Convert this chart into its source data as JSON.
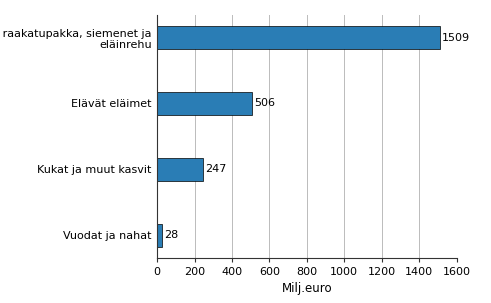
{
  "categories": [
    "Vuodat ja nahat",
    "Kukat ja muut kasvit",
    "Elävät eläimet",
    "Vilja, raakatupakka, siemenet ja\neläinrehu"
  ],
  "values": [
    28,
    247,
    506,
    1509
  ],
  "bar_color": "#2a7db5",
  "bar_edgecolor": "#000000",
  "xlabel": "Milj.euro",
  "xlim": [
    0,
    1600
  ],
  "xticks": [
    0,
    200,
    400,
    600,
    800,
    1000,
    1200,
    1400,
    1600
  ],
  "grid_color": "#bbbbbb",
  "background_color": "#ffffff",
  "label_fontsize": 8,
  "xlabel_fontsize": 8.5,
  "value_fontsize": 8,
  "bar_height": 0.35
}
